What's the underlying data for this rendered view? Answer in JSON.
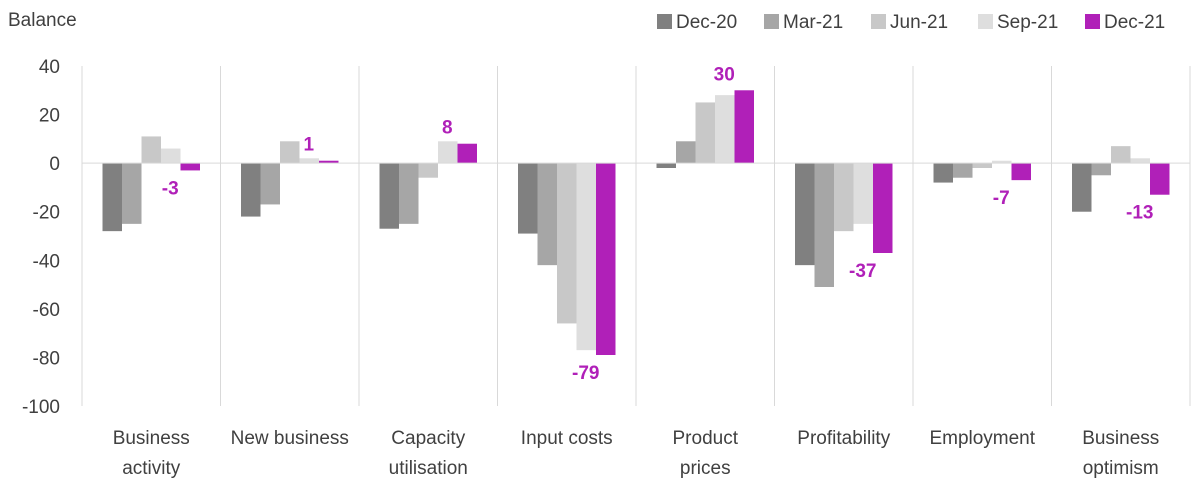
{
  "chart_data": {
    "type": "bar",
    "ylabel": "Balance",
    "ylim": [
      -100,
      40
    ],
    "yticks": [
      40,
      20,
      0,
      -20,
      -40,
      -60,
      -80,
      -100
    ],
    "legend_position": "top-right",
    "grid": false,
    "categories": [
      [
        "Business",
        "activity"
      ],
      [
        "New business"
      ],
      [
        "Capacity",
        "utilisation"
      ],
      [
        "Input costs"
      ],
      [
        "Product",
        "prices"
      ],
      [
        "Profitability"
      ],
      [
        "Employment"
      ],
      [
        "Business",
        "optimism"
      ]
    ],
    "series": [
      {
        "name": "Dec-20",
        "color": "#808080",
        "values": [
          -28,
          -22,
          -27,
          -29,
          -2,
          -42,
          -8,
          -20
        ]
      },
      {
        "name": "Mar-21",
        "color": "#a6a6a6",
        "values": [
          -25,
          -17,
          -25,
          -42,
          9,
          -51,
          -6,
          -5
        ]
      },
      {
        "name": "Jun-21",
        "color": "#c8c8c8",
        "values": [
          11,
          9,
          -6,
          -66,
          25,
          -28,
          -2,
          7
        ]
      },
      {
        "name": "Sep-21",
        "color": "#dedede",
        "values": [
          6,
          2,
          9,
          -77,
          28,
          -25,
          1,
          2
        ]
      },
      {
        "name": "Dec-21",
        "color": "#b020b8",
        "values": [
          -3,
          1,
          8,
          -79,
          30,
          -37,
          -7,
          -13
        ]
      }
    ],
    "data_labels": {
      "series": "Dec-21",
      "color": "#b020b8",
      "text": [
        "-3",
        "1",
        "8",
        "-79",
        "30",
        "-37",
        "-7",
        "-13"
      ]
    }
  }
}
